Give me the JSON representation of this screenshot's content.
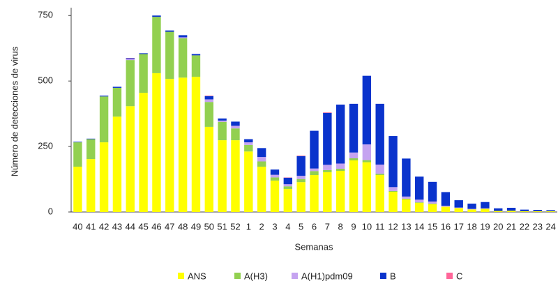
{
  "chart_data": {
    "type": "stacked_bar",
    "y_label": "Número de detecciones de virus",
    "x_label": "Semanas",
    "categories": [
      "40",
      "41",
      "42",
      "43",
      "44",
      "45",
      "46",
      "47",
      "48",
      "49",
      "50",
      "51",
      "52",
      "1",
      "2",
      "3",
      "4",
      "5",
      "6",
      "7",
      "8",
      "9",
      "10",
      "11",
      "12",
      "13",
      "14",
      "15",
      "16",
      "17",
      "18",
      "19",
      "20",
      "21",
      "22",
      "23",
      "24"
    ],
    "series": [
      {
        "name": "ANS",
        "color": "#ffff00",
        "values": [
          173,
          202,
          266,
          364,
          404,
          455,
          530,
          508,
          513,
          516,
          325,
          274,
          274,
          231,
          173,
          120,
          88,
          114,
          141,
          152,
          157,
          197,
          190,
          141,
          77,
          48,
          35,
          30,
          20,
          15,
          10,
          12,
          4,
          5,
          3,
          3,
          3
        ]
      },
      {
        "name": "A(H3)",
        "color": "#92d050",
        "values": [
          93,
          76,
          175,
          110,
          176,
          148,
          215,
          180,
          150,
          82,
          95,
          70,
          45,
          25,
          20,
          12,
          10,
          12,
          15,
          8,
          8,
          8,
          8,
          5,
          3,
          3,
          2,
          2,
          0,
          0,
          0,
          0,
          0,
          0,
          0,
          0,
          0
        ]
      },
      {
        "name": "A(H1)pdm09",
        "color": "#c5a3f0",
        "values": [
          0,
          0,
          0,
          0,
          4,
          0,
          0,
          0,
          4,
          0,
          10,
          5,
          10,
          10,
          17,
          10,
          8,
          12,
          10,
          20,
          20,
          22,
          60,
          35,
          15,
          8,
          10,
          8,
          4,
          2,
          2,
          2,
          0,
          0,
          0,
          0,
          0
        ]
      },
      {
        "name": "B",
        "color": "#0a33cc",
        "values": [
          2,
          2,
          3,
          4,
          3,
          3,
          5,
          5,
          8,
          5,
          12,
          8,
          16,
          12,
          34,
          20,
          25,
          75,
          144,
          198,
          225,
          186,
          262,
          232,
          195,
          145,
          88,
          75,
          52,
          28,
          20,
          24,
          10,
          11,
          6,
          5,
          4
        ]
      },
      {
        "name": "C",
        "color": "#ff6699",
        "values": [
          0,
          0,
          0,
          0,
          1,
          0,
          0,
          0,
          0,
          0,
          2,
          0,
          0,
          0,
          0,
          0,
          1,
          2,
          0,
          2,
          0,
          0,
          0,
          0,
          0,
          0,
          0,
          0,
          0,
          0,
          0,
          0,
          0,
          0,
          0,
          0,
          0
        ]
      }
    ],
    "ylim": [
      0,
      780
    ],
    "yticks": [
      0,
      250,
      500,
      750
    ],
    "grid": false,
    "legend": "bottom"
  }
}
